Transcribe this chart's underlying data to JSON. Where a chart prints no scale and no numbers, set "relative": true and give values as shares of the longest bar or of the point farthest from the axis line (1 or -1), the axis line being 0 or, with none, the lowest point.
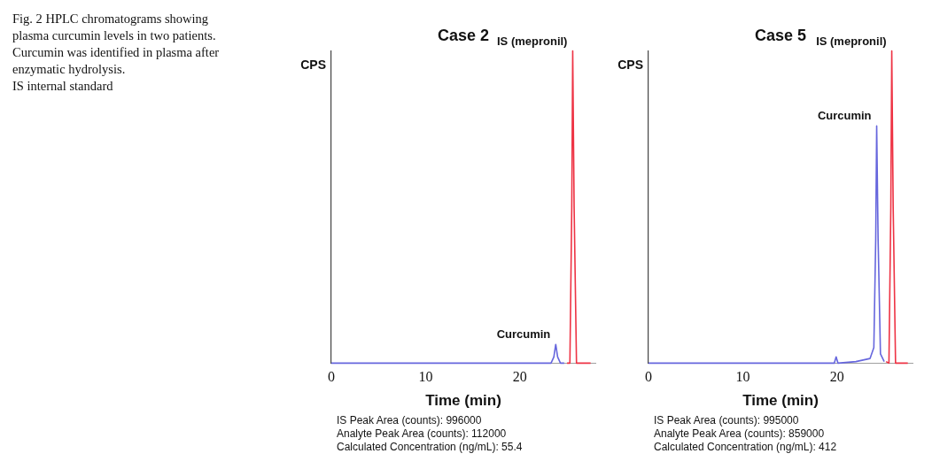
{
  "chart_data": [
    {
      "type": "line",
      "title": "Case 2",
      "xlabel": "Time (min)",
      "ylabel": "CPS",
      "relative": true,
      "grid": false,
      "legend": false,
      "marker": "none",
      "line_style": "solid",
      "xlim": [
        0,
        28
      ],
      "xticks": [
        0,
        10,
        20
      ],
      "series": [
        {
          "name": "Curcumin",
          "color": "#6666dd",
          "x": [
            0,
            23.3,
            23.6,
            23.8,
            24.0,
            24.3,
            24.7
          ],
          "values": [
            0,
            0,
            0.02,
            0.06,
            0.02,
            0,
            0
          ]
        },
        {
          "name": "IS (mepronil)",
          "color": "#ee3344",
          "x": [
            25,
            25.3,
            25.5,
            25.6,
            25.75,
            26,
            27.5
          ],
          "values": [
            0,
            0,
            0.5,
            1,
            0.5,
            0,
            0
          ]
        }
      ],
      "annotations": [
        "Fig. 2  HPLC chromatograms showing plasma curcumin levels in two patients. Curcumin was identified in plasma after enzymatic hydrolysis.",
        "IS internal standard",
        "IS Peak Area (counts):  996000",
        "Analyte Peak Area (counts):  112000",
        "Calculated Concentration (ng/mL):  55.4"
      ]
    },
    {
      "type": "line",
      "title": "Case 5",
      "xlabel": "Time (min)",
      "ylabel": "CPS",
      "relative": true,
      "grid": false,
      "legend": false,
      "marker": "none",
      "line_style": "solid",
      "xlim": [
        0,
        28
      ],
      "xticks": [
        0,
        10,
        20
      ],
      "series": [
        {
          "name": "Curcumin",
          "color": "#6666dd",
          "x": [
            0,
            19.7,
            19.9,
            20.1,
            22,
            23.5,
            23.9,
            24.1,
            24.2,
            24.35,
            24.6,
            25
          ],
          "values": [
            0,
            0,
            0.02,
            0,
            0.005,
            0.015,
            0.05,
            0.4,
            0.76,
            0.4,
            0.03,
            0.005
          ]
        },
        {
          "name": "IS (mepronil)",
          "color": "#ee3344",
          "x": [
            25.2,
            25.5,
            25.7,
            25.8,
            25.95,
            26.2,
            27.5
          ],
          "values": [
            0.005,
            0,
            0.5,
            1,
            0.5,
            0,
            0
          ]
        }
      ],
      "annotations": [
        "IS Peak Area (counts):  995000",
        "Analyte Peak Area (counts):  859000",
        "Calculated Concentration (ng/mL):  412"
      ]
    }
  ]
}
